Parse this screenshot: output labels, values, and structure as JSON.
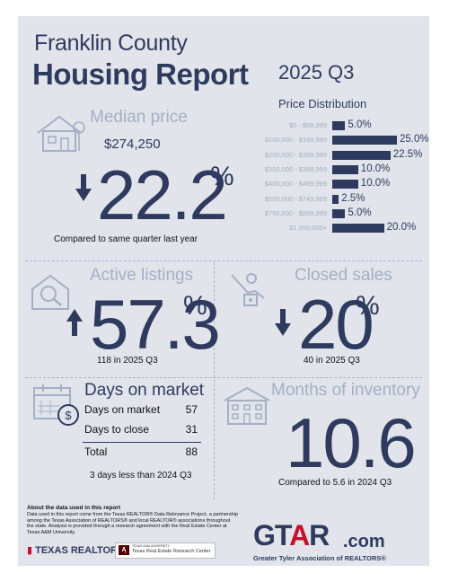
{
  "header": {
    "county": "Franklin County",
    "report": "Housing Report",
    "quarter": "2025 Q3"
  },
  "median": {
    "title": "Median price",
    "price": "$274,250",
    "change": "22.2",
    "pct": "%",
    "direction": "down",
    "note": "Compared to same quarter last year"
  },
  "distribution": {
    "title": "Price Distribution",
    "rows": [
      {
        "label": "$0 - $99,999",
        "value": 5.0,
        "text": "5.0%"
      },
      {
        "label": "$100,000 - $199,999",
        "value": 25.0,
        "text": "25.0%"
      },
      {
        "label": "$200,000 - $299,999",
        "value": 22.5,
        "text": "22.5%"
      },
      {
        "label": "$300,000 - $399,999",
        "value": 10.0,
        "text": "10.0%"
      },
      {
        "label": "$400,000 - $499,999",
        "value": 10.0,
        "text": "10.0%"
      },
      {
        "label": "$500,000 - $749,999",
        "value": 2.5,
        "text": "2.5%"
      },
      {
        "label": "$750,000 - $999,999",
        "value": 5.0,
        "text": "5.0%"
      },
      {
        "label": "$1,000,000+",
        "value": 20.0,
        "text": "20.0%"
      }
    ]
  },
  "active": {
    "title": "Active listings",
    "change": "57.3",
    "pct": "%",
    "direction": "up",
    "note": "118 in 2025 Q3"
  },
  "closed": {
    "title": "Closed sales",
    "change": "20",
    "pct": "%",
    "direction": "down",
    "note": "40 in 2025 Q3"
  },
  "dom": {
    "title": "Days on market",
    "rows": [
      {
        "label": "Days on market",
        "value": "57"
      },
      {
        "label": "Days to close",
        "value": "31"
      }
    ],
    "total_label": "Total",
    "total_value": "88",
    "note": "3 days less than 2024 Q3"
  },
  "inventory": {
    "title": "Months of inventory",
    "value": "10.6",
    "note": "Compared to 5.6 in 2024 Q3"
  },
  "about": {
    "title": "About the data used in this report",
    "text": "Data used in this report come from the Texas REALTOR® Data Relevance Project, a partnership among the Texas Association of REALTORS® and local REALTOR® associations throughout the state. Analysis is provided through a research agreement with the Real Estate Center at Texas A&M University."
  },
  "footer": {
    "texas_realtors": "TEXAS REALTORS",
    "trerc_small": "TEXAS A&M UNIVERSITY",
    "trerc_main": "Texas Real Estate Research Center",
    "gtar_g": "GT",
    "gtar_a": "A",
    "gtar_r": "R",
    "gtar_com": ".com",
    "gtar_tagline": "Greater Tyler Association of REALTORS®"
  },
  "colors": {
    "navy": "#2f3b5e",
    "accent_grey": "#a3b0c4",
    "background": "#e1e4ea",
    "brand_red": "#c8102e"
  }
}
